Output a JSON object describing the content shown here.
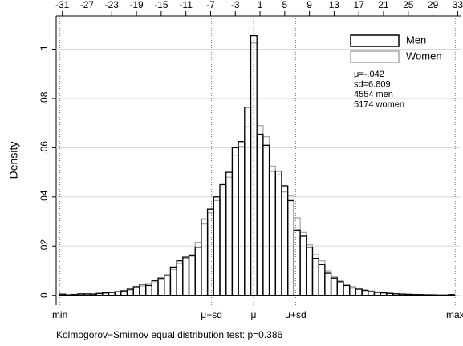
{
  "chart_data": {
    "type": "histogram",
    "ylabel": "Density",
    "note": "Kolmogorov−Smirnov equal distribution test: p=0.386",
    "stats": [
      "μ=-.042",
      "sd=6.809",
      "4554 men",
      "5174 women"
    ],
    "bins": [
      -31.5,
      -30.5,
      -29.5,
      -28.5,
      -27.5,
      -26.5,
      -25.5,
      -24.5,
      -23.5,
      -22.5,
      -21.5,
      -20.5,
      -19.5,
      -18.5,
      -17.5,
      -16.5,
      -15.5,
      -14.5,
      -13.5,
      -12.5,
      -11.5,
      -10.5,
      -9.5,
      -8.5,
      -7.5,
      -6.5,
      -5.5,
      -4.5,
      -3.5,
      -2.5,
      -1.5,
      -0.5,
      0.5,
      1.5,
      2.5,
      3.5,
      4.5,
      5.5,
      6.5,
      7.5,
      8.5,
      9.5,
      10.5,
      11.5,
      12.5,
      13.5,
      14.5,
      15.5,
      16.5,
      17.5,
      18.5,
      19.5,
      20.5,
      21.5,
      22.5,
      23.5,
      24.5,
      25.5,
      26.5,
      27.5,
      28.5,
      29.5,
      30.5,
      31.5,
      32.5
    ],
    "series": [
      {
        "name": "Men",
        "color": "#000000",
        "values": [
          0.0005,
          0.0002,
          0.0003,
          0.0006,
          0.0006,
          0.0005,
          0.0008,
          0.001,
          0.0012,
          0.0015,
          0.0018,
          0.0025,
          0.0035,
          0.0045,
          0.004,
          0.006,
          0.007,
          0.008,
          0.0115,
          0.014,
          0.0155,
          0.016,
          0.0195,
          0.031,
          0.035,
          0.04,
          0.045,
          0.05,
          0.06,
          0.0625,
          0.0765,
          0.1055,
          0.0655,
          0.061,
          0.0505,
          0.0505,
          0.0445,
          0.0385,
          0.0265,
          0.024,
          0.0195,
          0.015,
          0.0125,
          0.009,
          0.007,
          0.0055,
          0.004,
          0.003,
          0.0025,
          0.002,
          0.0015,
          0.0012,
          0.001,
          0.0008,
          0.0006,
          0.0005,
          0.0004,
          0.0003,
          0.0003,
          0.0002,
          0.0002,
          0.0001,
          0.0001,
          0.0003
        ]
      },
      {
        "name": "Women",
        "color": "#a8a8a8",
        "values": [
          0.0003,
          0.0002,
          0.0004,
          0.0004,
          0.0005,
          0.0006,
          0.0007,
          0.0009,
          0.0011,
          0.0014,
          0.002,
          0.0022,
          0.003,
          0.0038,
          0.0048,
          0.0055,
          0.0065,
          0.0085,
          0.0105,
          0.013,
          0.015,
          0.0165,
          0.0215,
          0.029,
          0.0335,
          0.0385,
          0.044,
          0.048,
          0.057,
          0.0605,
          0.0685,
          0.1025,
          0.069,
          0.0645,
          0.0525,
          0.049,
          0.042,
          0.0405,
          0.0315,
          0.0255,
          0.0205,
          0.0165,
          0.014,
          0.01,
          0.0075,
          0.006,
          0.0045,
          0.0035,
          0.003,
          0.0022,
          0.0018,
          0.0014,
          0.0011,
          0.0009,
          0.0007,
          0.0006,
          0.0005,
          0.0004,
          0.0003,
          0.0003,
          0.0002,
          0.0002,
          0.0002,
          0.0002
        ]
      }
    ],
    "xlim": [
      -32,
      33.6
    ],
    "xticks": [
      -31,
      -27,
      -23,
      -19,
      -15,
      -11,
      -7,
      -3,
      1,
      5,
      9,
      13,
      17,
      21,
      25,
      29,
      33
    ],
    "xticks_bottom": [
      {
        "value": -31.4,
        "label": "min"
      },
      {
        "value": -6.851,
        "label": "μ−sd"
      },
      {
        "value": -0.042,
        "label": "μ"
      },
      {
        "value": 6.767,
        "label": "μ+sd"
      },
      {
        "value": 32.6,
        "label": "max"
      }
    ],
    "ylim": [
      -0.004,
      0.107
    ],
    "yticks": [
      0,
      {
        "value": 0.02,
        "label": ".02"
      },
      {
        "value": 0.04,
        "label": ".04"
      },
      {
        "value": 0.06,
        "label": ".06"
      },
      {
        "value": 0.08,
        "label": ".08"
      },
      {
        "value": 0.1,
        "label": ".1"
      }
    ],
    "grid": true
  }
}
